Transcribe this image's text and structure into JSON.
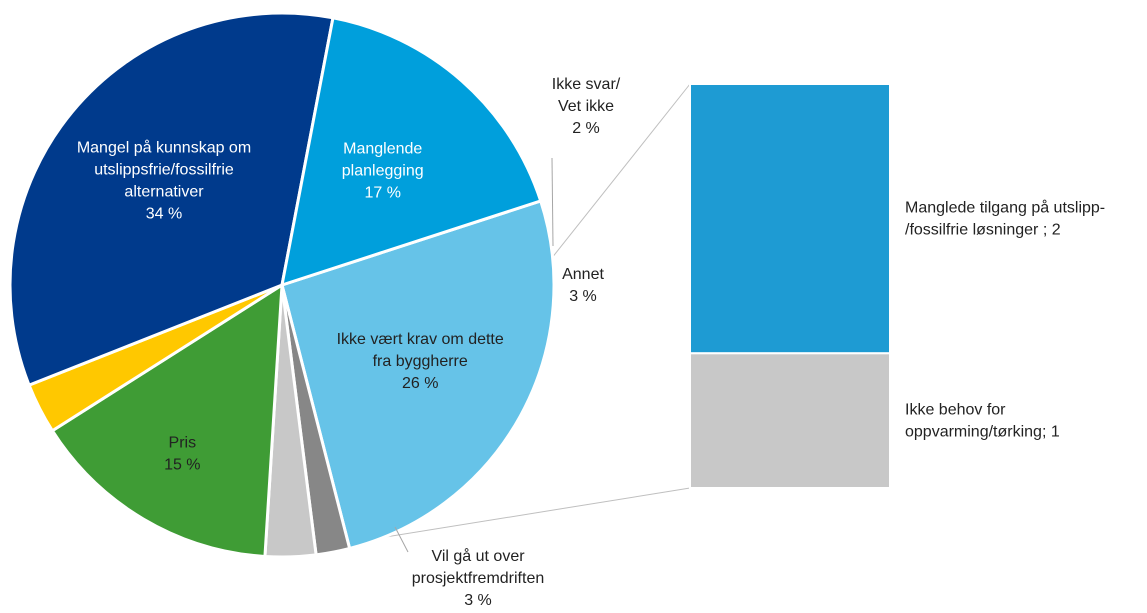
{
  "chart_data": {
    "type": "bar-of-pie",
    "pie": {
      "slices": [
        {
          "label_lines": [
            "Ikke vært krav om dette",
            "fra byggherre"
          ],
          "value": 26,
          "value_label": "26 %",
          "color": "#66c3e8",
          "label_color": "#222222"
        },
        {
          "label_lines": [
            "Ikke svar/",
            "Vet ikke"
          ],
          "value": 2,
          "value_label": "2 %",
          "color": "#878787",
          "label_color": "#222222"
        },
        {
          "label_lines": [
            "Annet"
          ],
          "value": 3,
          "value_label": "3 %",
          "color": "#c8c8c8",
          "label_color": "#222222"
        },
        {
          "label_lines": [
            "Pris"
          ],
          "value": 15,
          "value_label": "15 %",
          "color": "#3f9c35",
          "label_color": "#222222"
        },
        {
          "label_lines": [
            "Vil gå ut over",
            "prosjektfremdriften"
          ],
          "value": 3,
          "value_label": "3 %",
          "color": "#ffc800",
          "label_color": "#222222"
        },
        {
          "label_lines": [
            "Mangel på kunnskap om",
            "utslippsfrie/fossilfrie",
            "alternativer"
          ],
          "value": 34,
          "value_label": "34 %",
          "color": "#003a8c",
          "label_color": "#ffffff"
        },
        {
          "label_lines": [
            "Manglende",
            "planlegging"
          ],
          "value": 17,
          "value_label": "17 %",
          "color": "#009fdc",
          "label_color": "#ffffff"
        }
      ]
    },
    "bar": {
      "source_slice": "Annet",
      "segments": [
        {
          "label_lines": [
            "Manglede tilgang på utslipp-",
            "/fossilfrie løsninger ; 2"
          ],
          "value": 2,
          "color": "#1e9bd3"
        },
        {
          "label_lines": [
            "Ikke behov for",
            "oppvarming/tørking; 1"
          ],
          "value": 1,
          "color": "#c8c8c8"
        }
      ]
    }
  }
}
